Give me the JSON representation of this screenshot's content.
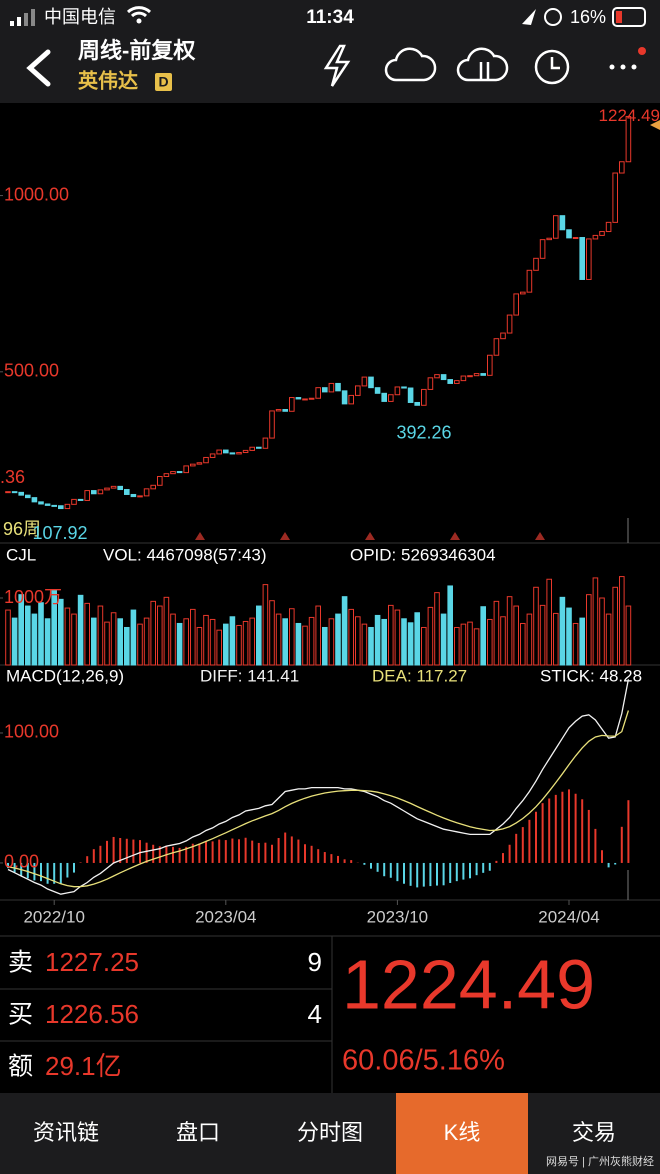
{
  "status_bar": {
    "carrier": "中国电信",
    "time": "11:34",
    "battery": "16%"
  },
  "header": {
    "title": "周线-前复权",
    "stock_name": "英伟达",
    "badge": "D"
  },
  "chart_data": [
    {
      "type": "candlestick",
      "up_color": "#e8382b",
      "down_color": "#5ad6e6",
      "values": [
        160,
        158,
        150,
        143,
        131,
        125,
        121,
        120,
        112,
        124,
        138,
        135,
        163,
        154,
        165,
        170,
        175,
        166,
        152,
        146,
        148,
        168,
        178,
        203,
        211,
        217,
        214,
        233,
        238,
        242,
        257,
        267,
        278,
        270,
        267,
        271,
        277,
        286,
        283,
        312,
        389,
        393,
        388,
        427,
        423,
        423,
        425,
        455,
        443,
        467,
        446,
        409,
        433,
        460,
        485,
        455,
        439,
        416,
        435,
        457,
        454,
        413,
        405,
        450,
        483,
        492,
        478,
        467,
        475,
        488,
        489,
        495,
        490,
        547,
        594,
        610,
        661,
        721,
        726,
        788,
        822,
        875,
        879,
        943,
        903,
        880,
        881,
        762,
        877,
        887,
        898,
        924,
        1064,
        1096,
        1224.49
      ],
      "ylim": [
        14.3,
        1257
      ],
      "yticks": [
        {
          "value": 1000,
          "label": "1000.00"
        },
        {
          "value": 500,
          "label": "500.00"
        }
      ],
      "xticks": [
        {
          "value": 7,
          "label": "2022/10"
        },
        {
          "value": 33,
          "label": "2023/04"
        },
        {
          "value": 59,
          "label": "2023/10"
        },
        {
          "value": 85,
          "label": "2024/04"
        }
      ],
      "high_label": 1224.49,
      "low_labels": [
        392.26,
        107.92
      ],
      "edge_texts": [
        ".36",
        "96周"
      ]
    },
    {
      "type": "volume",
      "title": "CJL",
      "texts": [
        "VOL: 4467098(57:43)",
        "OPID: 5269346304"
      ],
      "values": [
        820,
        700,
        1050,
        880,
        760,
        930,
        690,
        1120,
        980,
        850,
        760,
        1040,
        920,
        700,
        880,
        640,
        780,
        690,
        560,
        820,
        610,
        700,
        950,
        880,
        1010,
        760,
        620,
        690,
        830,
        560,
        740,
        680,
        520,
        610,
        720,
        590,
        650,
        700,
        880,
        1200,
        960,
        760,
        690,
        840,
        620,
        580,
        710,
        880,
        560,
        690,
        760,
        1020,
        830,
        720,
        610,
        560,
        740,
        680,
        890,
        820,
        690,
        630,
        780,
        560,
        860,
        1080,
        760,
        1180,
        560,
        610,
        640,
        540,
        870,
        680,
        950,
        720,
        1020,
        880,
        620,
        760,
        1160,
        890,
        1280,
        770,
        1010,
        850,
        620,
        700,
        1050,
        1300,
        1000,
        760,
        1160,
        1320,
        880
      ],
      "ylim": [
        0,
        1448
      ],
      "yticks": [
        {
          "value": 1000,
          "label": "1000万"
        }
      ]
    },
    {
      "type": "macd",
      "title": "MACD(12,26,9)",
      "ylim": [
        -28.5,
        142.3
      ],
      "yticks": [
        {
          "value": 100,
          "label": "100.00"
        },
        {
          "value": 0,
          "label": "0.00"
        }
      ],
      "series": [
        {
          "label": "DIFF: 141.41",
          "color": "#f2f2f2",
          "values": [
            -5,
            -7.5,
            -10,
            -12.5,
            -15,
            -17,
            -20,
            -22,
            -24,
            -23,
            -22,
            -18,
            -15,
            -11,
            -8,
            -4,
            0,
            2,
            4,
            6,
            8,
            9,
            10,
            11,
            13,
            14,
            15,
            17,
            20,
            22,
            25,
            27,
            30,
            32,
            35,
            37,
            40,
            41,
            42,
            44,
            45,
            50,
            55,
            56,
            57,
            57,
            58,
            58,
            58,
            58,
            58,
            57,
            57,
            56,
            55,
            53,
            51,
            48,
            46,
            43,
            40,
            37,
            34,
            32,
            30,
            28,
            26,
            25,
            24,
            23,
            22,
            22,
            22,
            22,
            26,
            30,
            35,
            42,
            48,
            55,
            63,
            72,
            80,
            88,
            96,
            104,
            109,
            113,
            114,
            110,
            103,
            96,
            97,
            115,
            141.41
          ]
        },
        {
          "label": "DEA: 117.27",
          "color": "#e8e07a",
          "values": [
            -3,
            -3.9,
            -5.1,
            -6.6,
            -8.3,
            -10,
            -12,
            -14,
            -16,
            -17.4,
            -18.3,
            -18.2,
            -17.6,
            -16.3,
            -14.6,
            -12.5,
            -10,
            -7.6,
            -5.3,
            -3,
            -0.8,
            1.2,
            3,
            4.6,
            6.3,
            7.8,
            9.2,
            10.8,
            12.6,
            14.5,
            16.6,
            18.7,
            21,
            23.2,
            25.6,
            27.9,
            30.3,
            32.4,
            34.3,
            36.2,
            38,
            40.4,
            43.3,
            45.8,
            48,
            49.8,
            51.4,
            52.7,
            53.8,
            54.6,
            55.3,
            55.6,
            55.9,
            55.9,
            55.7,
            55.2,
            54.4,
            53.1,
            51.7,
            50,
            48,
            45.8,
            43.4,
            41.1,
            38.9,
            36.7,
            34.6,
            32.7,
            31,
            29.4,
            27.9,
            26.7,
            25.8,
            25,
            25.2,
            26.2,
            28,
            30.8,
            34.2,
            38.4,
            43.3,
            49,
            55.2,
            61.8,
            68.6,
            75.7,
            82.4,
            88.5,
            93.6,
            96.9,
            98.1,
            97.7,
            97.6,
            101.1,
            117.27
          ]
        }
      ],
      "stick": {
        "label": "STICK: 48.28",
        "up_color": "#e8382b",
        "down_color": "#5ad6e6",
        "values": [
          -4,
          -7.2,
          -9.8,
          -11.8,
          -13.4,
          -14,
          -16,
          -16,
          -16,
          -11.2,
          -7.4,
          0.4,
          5.2,
          10.6,
          13.2,
          17,
          20,
          19.2,
          18.6,
          18,
          17.6,
          15.6,
          14,
          12.8,
          13.4,
          12.4,
          11.6,
          12.4,
          14.8,
          15,
          16.8,
          16.6,
          18,
          17.6,
          18.8,
          18.2,
          19.4,
          17.2,
          15.4,
          15.6,
          14,
          19.2,
          23.4,
          20.4,
          18,
          14.4,
          13.2,
          10.6,
          8.4,
          6.8,
          5.4,
          2.8,
          2.2,
          0.2,
          -1.4,
          -4.4,
          -6.8,
          -10.2,
          -11.4,
          -14,
          -16,
          -17.6,
          -18.8,
          -18.2,
          -17.8,
          -17.4,
          -17.2,
          -15.4,
          -14,
          -12.8,
          -11.8,
          -9.4,
          -7.6,
          -6,
          1.6,
          7.6,
          14,
          22.4,
          27.6,
          33.2,
          39.4,
          46,
          49.6,
          52.4,
          54.8,
          56.6,
          53.2,
          49,
          40.8,
          26.2,
          9.8,
          -3.4,
          -1.2,
          27.8,
          48.28
        ]
      }
    }
  ],
  "quote": {
    "ask_label": "卖",
    "ask_price": 1227.25,
    "ask_size": 9,
    "bid_label": "买",
    "bid_price": 1226.56,
    "bid_size": 4,
    "amount_label": "额",
    "amount": "29.1亿",
    "last": 1224.49,
    "change": "60.06/5.16%"
  },
  "tabs": {
    "items": [
      "资讯链",
      "盘口",
      "分时图",
      "K线",
      "交易"
    ],
    "active": 3
  },
  "watermark": "网易号 | 广州灰熊财经"
}
